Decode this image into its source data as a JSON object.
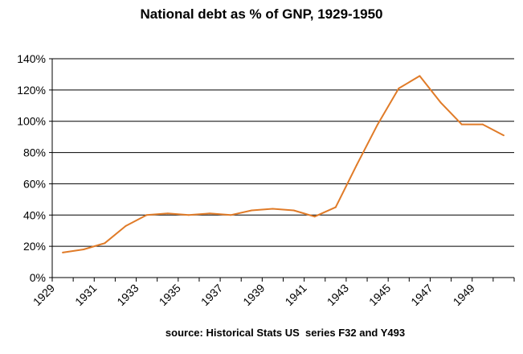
{
  "chart_data": {
    "type": "line",
    "title": "National debt as % of GNP, 1929-1950",
    "source": "source: Historical Stats US  series F32 and Y493",
    "xlabel": "",
    "ylabel": "",
    "ylim": [
      0,
      140
    ],
    "y_ticks": [
      0,
      20,
      40,
      60,
      80,
      100,
      120,
      140
    ],
    "y_tick_labels": [
      "0%",
      "20%",
      "40%",
      "60%",
      "80%",
      "100%",
      "120%",
      "140%"
    ],
    "x_tick_labels": [
      "1929",
      "1931",
      "1933",
      "1935",
      "1937",
      "1939",
      "1941",
      "1943",
      "1945",
      "1947",
      "1949"
    ],
    "grid": "horizontal",
    "legend": "none",
    "line_color": "#E07B28",
    "x": [
      1929,
      1930,
      1931,
      1932,
      1933,
      1934,
      1935,
      1936,
      1937,
      1938,
      1939,
      1940,
      1941,
      1942,
      1943,
      1944,
      1945,
      1946,
      1947,
      1948,
      1949,
      1950
    ],
    "series": [
      {
        "values": [
          16,
          18,
          22,
          33,
          40,
          41,
          40,
          41,
          40,
          43,
          44,
          43,
          39,
          45,
          72,
          98,
          121,
          129,
          112,
          98,
          98,
          91
        ]
      }
    ]
  }
}
